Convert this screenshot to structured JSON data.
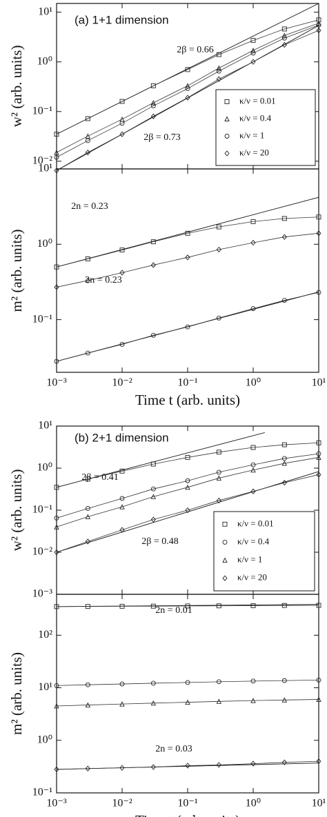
{
  "chart_data": [
    {
      "type": "line",
      "title": "(a) 1+1 dimension",
      "ylabel": "w² (arb. units)",
      "log_x": true,
      "log_y": true,
      "legend": "right",
      "xlim": [
        0.001,
        10
      ],
      "ylim": [
        0.007,
        15
      ],
      "xticks": [
        0.001,
        0.01,
        0.1,
        1,
        10
      ],
      "yticks": [
        {
          "value": 0.01,
          "label": "10⁻²"
        },
        {
          "value": 0.1,
          "label": "10⁻¹"
        },
        {
          "value": 1,
          "label": "10⁰"
        },
        {
          "value": 10,
          "label": "10¹"
        }
      ],
      "x": [
        0.001,
        0.003,
        0.01,
        0.03,
        0.1,
        0.3,
        1,
        3,
        10
      ],
      "series": [
        {
          "name": "κ/ν = 0.01",
          "marker": "square",
          "values": [
            0.035,
            0.072,
            0.16,
            0.33,
            0.7,
            1.4,
            2.7,
            4.6,
            7
          ]
        },
        {
          "name": "κ/ν = 0.4",
          "marker": "triangle",
          "values": [
            0.015,
            0.032,
            0.07,
            0.15,
            0.33,
            0.75,
            1.7,
            3.4,
            6
          ]
        },
        {
          "name": "κ/ν = 1",
          "marker": "circle",
          "values": [
            0.012,
            0.026,
            0.058,
            0.13,
            0.29,
            0.65,
            1.5,
            3,
            5.5
          ]
        },
        {
          "name": "κ/ν = 20",
          "marker": "diamond",
          "values": [
            0.0065,
            0.015,
            0.035,
            0.08,
            0.19,
            0.45,
            1.0,
            2.2,
            4.3
          ]
        }
      ],
      "fits": [
        {
          "label": "2β = 0.66",
          "x": [
            0.001,
            10
          ],
          "values": [
            0.035,
            15
          ]
        },
        {
          "label": "2β = 0.73",
          "x": [
            0.001,
            10
          ],
          "values": [
            0.0065,
            5.4
          ]
        }
      ]
    },
    {
      "type": "line",
      "ylabel": "m² (arb. units)",
      "xlabel": "Time t (arb. units)",
      "log_x": true,
      "log_y": true,
      "xlim": [
        0.001,
        10
      ],
      "ylim": [
        0.02,
        10
      ],
      "xticks": [
        {
          "value": 0.001,
          "label": "10⁻³"
        },
        {
          "value": 0.01,
          "label": "10⁻²"
        },
        {
          "value": 0.1,
          "label": "10⁻¹"
        },
        {
          "value": 1,
          "label": "10⁰"
        },
        {
          "value": 10,
          "label": "10¹"
        }
      ],
      "yticks": [
        {
          "value": 0.1,
          "label": "10⁻¹"
        },
        {
          "value": 1,
          "label": "10⁰"
        },
        {
          "value": 10,
          "label": "10¹"
        }
      ],
      "x": [
        0.001,
        0.003,
        0.01,
        0.03,
        0.1,
        0.3,
        1,
        3,
        10
      ],
      "series": [
        {
          "marker": "square",
          "values": [
            0.5,
            0.64,
            0.84,
            1.08,
            1.4,
            1.7,
            2.0,
            2.2,
            2.3
          ]
        },
        {
          "marker": "diamond",
          "values": [
            0.27,
            0.33,
            0.42,
            0.53,
            0.67,
            0.85,
            1.05,
            1.25,
            1.4
          ]
        },
        {
          "marker": "circle",
          "values": [
            0.028,
            0.036,
            0.047,
            0.062,
            0.08,
            0.105,
            0.14,
            0.18,
            0.23
          ]
        }
      ],
      "fits": [
        {
          "label": "2n = 0.23",
          "x": [
            0.001,
            10
          ],
          "values": [
            0.5,
            4.2
          ]
        },
        {
          "label": "2n = 0.23",
          "x": [
            0.001,
            10
          ],
          "values": [
            0.028,
            0.233
          ]
        }
      ]
    },
    {
      "type": "line",
      "title": "(b) 2+1 dimension",
      "ylabel": "w² (arb. units)",
      "log_x": true,
      "log_y": true,
      "legend": "right",
      "xlim": [
        0.001,
        10
      ],
      "ylim": [
        0.001,
        10
      ],
      "xticks": [
        0.001,
        0.01,
        0.1,
        1,
        10
      ],
      "yticks": [
        {
          "value": 0.001,
          "label": "10⁻³"
        },
        {
          "value": 0.01,
          "label": "10⁻²"
        },
        {
          "value": 0.1,
          "label": "10⁻¹"
        },
        {
          "value": 1,
          "label": "10⁰"
        },
        {
          "value": 10,
          "label": "10¹"
        }
      ],
      "x": [
        0.001,
        0.003,
        0.01,
        0.03,
        0.1,
        0.3,
        1,
        3,
        10
      ],
      "series": [
        {
          "name": "κ/ν = 0.01",
          "marker": "square",
          "values": [
            0.35,
            0.55,
            0.85,
            1.25,
            1.8,
            2.4,
            3.1,
            3.6,
            4
          ]
        },
        {
          "name": "κ/ν = 0.4",
          "marker": "circle",
          "values": [
            0.065,
            0.11,
            0.19,
            0.32,
            0.5,
            0.8,
            1.2,
            1.7,
            2.2
          ]
        },
        {
          "name": "κ/ν = 1",
          "marker": "triangle",
          "values": [
            0.04,
            0.07,
            0.12,
            0.21,
            0.35,
            0.58,
            0.9,
            1.3,
            1.8
          ]
        },
        {
          "name": "κ/ν = 20",
          "marker": "diamond",
          "values": [
            0.01,
            0.018,
            0.034,
            0.06,
            0.1,
            0.17,
            0.28,
            0.45,
            0.7
          ]
        }
      ],
      "fits": [
        {
          "label": "2β = 0.41",
          "x": [
            0.001,
            1.5
          ],
          "values": [
            0.35,
            7
          ]
        },
        {
          "label": "2β = 0.48",
          "x": [
            0.001,
            10
          ],
          "values": [
            0.01,
            0.83
          ]
        }
      ]
    },
    {
      "type": "line",
      "ylabel": "m² (arb. units)",
      "xlabel": "Time t (arb. units)",
      "log_x": true,
      "log_y": true,
      "xlim": [
        0.001,
        10
      ],
      "ylim": [
        0.1,
        600
      ],
      "xticks": [
        {
          "value": 0.001,
          "label": "10⁻³"
        },
        {
          "value": 0.01,
          "label": "10⁻²"
        },
        {
          "value": 0.1,
          "label": "10⁻¹"
        },
        {
          "value": 1,
          "label": "10⁰"
        },
        {
          "value": 10,
          "label": "10¹"
        }
      ],
      "yticks": [
        {
          "value": 0.1,
          "label": "10⁻¹"
        },
        {
          "value": 1,
          "label": "10⁰"
        },
        {
          "value": 10,
          "label": "10¹"
        },
        {
          "value": 100,
          "label": "10²"
        }
      ],
      "x": [
        0.001,
        0.003,
        0.01,
        0.03,
        0.1,
        0.3,
        1,
        3,
        10
      ],
      "series": [
        {
          "marker": "square",
          "values": [
            350,
            352,
            355,
            357,
            360,
            362,
            365,
            368,
            370
          ]
        },
        {
          "marker": "circle",
          "values": [
            11,
            11.4,
            11.8,
            12.2,
            12.6,
            13,
            13.4,
            13.7,
            14
          ]
        },
        {
          "marker": "triangle",
          "values": [
            4.5,
            4.7,
            4.9,
            5.1,
            5.3,
            5.5,
            5.7,
            5.85,
            6
          ]
        },
        {
          "marker": "diamond",
          "values": [
            0.28,
            0.29,
            0.3,
            0.31,
            0.33,
            0.34,
            0.36,
            0.38,
            0.4
          ]
        }
      ],
      "fits": [
        {
          "label": "2n = 0.01",
          "x": [
            0.001,
            10
          ],
          "values": [
            350,
            385
          ]
        },
        {
          "label": "2n = 0.03",
          "x": [
            0.001,
            10
          ],
          "values": [
            0.28,
            0.37
          ]
        }
      ]
    }
  ]
}
